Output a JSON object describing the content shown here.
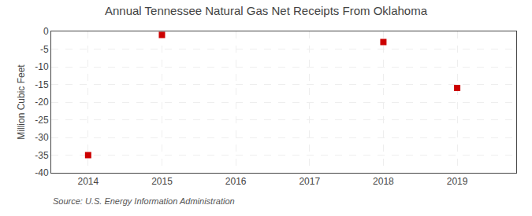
{
  "chart_data": {
    "type": "scatter",
    "title": "Annual Tennessee Natural Gas Net Receipts From Oklahoma",
    "ylabel": "Million Cubic Feet",
    "annotations": [
      "Source: U.S. Energy Information Administration"
    ],
    "x": [
      2014,
      2015,
      2018,
      2019
    ],
    "values": [
      -35,
      -1,
      -3,
      -16
    ],
    "color": "#cc0000",
    "marker": "square",
    "xlim": [
      2013.5,
      2019.8
    ],
    "xticks": [
      2014,
      2015,
      2016,
      2017,
      2018,
      2019
    ],
    "ylim": [
      -40,
      0
    ],
    "yticks": [
      0,
      -5,
      -10,
      -15,
      -20,
      -25,
      -30,
      -35,
      -40
    ],
    "grid": true
  }
}
